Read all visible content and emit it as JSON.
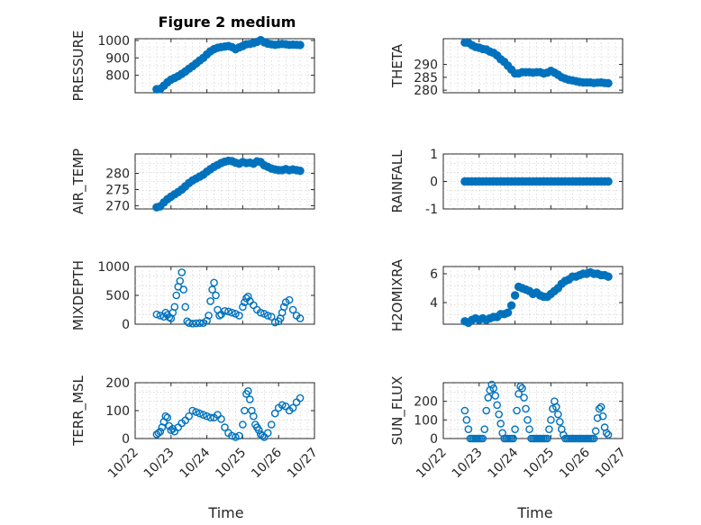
{
  "title": "Figure 2 medium",
  "colors": {
    "marker": "#0072BD",
    "axis": "#262626",
    "grid": "#c8c8c8"
  },
  "xaxis": {
    "label": "Time",
    "range": [
      "10/22",
      "10/27"
    ],
    "ticks": [
      "10/22",
      "10/23",
      "10/24",
      "10/25",
      "10/26",
      "10/27"
    ],
    "tick_values": [
      0,
      1,
      2,
      3,
      4,
      5
    ]
  },
  "chart_data": [
    {
      "id": "pressure",
      "type": "scatter",
      "col": 0,
      "row": 0,
      "ylabel": "PRESSURE",
      "ylim": [
        700,
        1010
      ],
      "yticks": [
        800,
        900,
        1000
      ],
      "ytick_labels": [
        "800",
        "900",
        "1000"
      ],
      "filled": true,
      "x": [
        0.6,
        0.7,
        0.8,
        0.9,
        1.0,
        1.1,
        1.2,
        1.3,
        1.4,
        1.5,
        1.6,
        1.7,
        1.8,
        1.9,
        2.0,
        2.1,
        2.2,
        2.3,
        2.4,
        2.5,
        2.6,
        2.7,
        2.8,
        2.9,
        3.0,
        3.1,
        3.2,
        3.3,
        3.4,
        3.5,
        3.6,
        3.7,
        3.8,
        3.9,
        4.0,
        4.1,
        4.2,
        4.3,
        4.4,
        4.5,
        4.6
      ],
      "y": [
        720,
        722,
        740,
        760,
        775,
        785,
        795,
        808,
        822,
        838,
        852,
        868,
        885,
        900,
        920,
        938,
        950,
        958,
        962,
        965,
        968,
        962,
        950,
        960,
        968,
        978,
        980,
        985,
        992,
        1002,
        990,
        982,
        978,
        975,
        978,
        980,
        978,
        975,
        976,
        975,
        974
      ]
    },
    {
      "id": "theta",
      "type": "scatter",
      "col": 1,
      "row": 0,
      "ylabel": "THETA",
      "ylim": [
        279,
        300
      ],
      "yticks": [
        280,
        285,
        290
      ],
      "ytick_labels": [
        "280",
        "285",
        "290"
      ],
      "filled": true,
      "x": [
        0.6,
        0.7,
        0.8,
        0.9,
        1.0,
        1.1,
        1.2,
        1.3,
        1.4,
        1.5,
        1.6,
        1.7,
        1.8,
        1.9,
        2.0,
        2.1,
        2.2,
        2.3,
        2.4,
        2.5,
        2.6,
        2.7,
        2.8,
        2.9,
        3.0,
        3.1,
        3.2,
        3.3,
        3.4,
        3.5,
        3.6,
        3.7,
        3.8,
        3.9,
        4.0,
        4.1,
        4.2,
        4.3,
        4.4,
        4.5,
        4.6
      ],
      "y": [
        298.5,
        298.4,
        297.5,
        296.8,
        296.5,
        296,
        295.8,
        295,
        294.5,
        293.5,
        292,
        291,
        289.5,
        288,
        286.5,
        286.5,
        287,
        287,
        287,
        286.8,
        287,
        287,
        286.5,
        286.8,
        287.5,
        286.8,
        286,
        285,
        284.5,
        284,
        283.8,
        283.5,
        283.2,
        283,
        283,
        283,
        282.8,
        282.9,
        283,
        282.8,
        282.7
      ]
    },
    {
      "id": "air_temp",
      "type": "scatter",
      "col": 0,
      "row": 1,
      "ylabel": "AIR_TEMP",
      "ylim": [
        269,
        286
      ],
      "yticks": [
        270,
        275,
        280
      ],
      "ytick_labels": [
        "270",
        "275",
        "280"
      ],
      "filled": true,
      "x": [
        0.6,
        0.7,
        0.8,
        0.9,
        1.0,
        1.1,
        1.2,
        1.3,
        1.4,
        1.5,
        1.6,
        1.7,
        1.8,
        1.9,
        2.0,
        2.1,
        2.2,
        2.3,
        2.4,
        2.5,
        2.6,
        2.7,
        2.8,
        2.9,
        3.0,
        3.1,
        3.2,
        3.3,
        3.4,
        3.5,
        3.6,
        3.7,
        3.8,
        3.9,
        4.0,
        4.1,
        4.2,
        4.3,
        4.4,
        4.5,
        4.6
      ],
      "y": [
        269.5,
        269.8,
        271,
        272,
        272.8,
        273.5,
        274.2,
        275,
        276,
        277,
        277.8,
        278.4,
        279,
        279.6,
        280.5,
        281.3,
        282,
        282.6,
        283.2,
        283.6,
        283.9,
        283.8,
        283.3,
        283,
        283.5,
        283.2,
        283.3,
        283,
        283.7,
        283.5,
        282.5,
        282,
        281.5,
        281.2,
        281,
        281,
        281.3,
        281,
        281.2,
        281,
        280.8
      ]
    },
    {
      "id": "rainfall",
      "type": "scatter",
      "col": 1,
      "row": 1,
      "ylabel": "RAINFALL",
      "ylim": [
        -1,
        1
      ],
      "yticks": [
        -1,
        0,
        1
      ],
      "ytick_labels": [
        "-1",
        "0",
        "1"
      ],
      "filled": true,
      "x": [
        0.6,
        0.7,
        0.8,
        0.9,
        1.0,
        1.1,
        1.2,
        1.3,
        1.4,
        1.5,
        1.6,
        1.7,
        1.8,
        1.9,
        2.0,
        2.1,
        2.2,
        2.3,
        2.4,
        2.5,
        2.6,
        2.7,
        2.8,
        2.9,
        3.0,
        3.1,
        3.2,
        3.3,
        3.4,
        3.5,
        3.6,
        3.7,
        3.8,
        3.9,
        4.0,
        4.1,
        4.2,
        4.3,
        4.4,
        4.5,
        4.6
      ],
      "y": [
        0,
        0,
        0,
        0,
        0,
        0,
        0,
        0,
        0,
        0,
        0,
        0,
        0,
        0,
        0,
        0,
        0,
        0,
        0,
        0,
        0,
        0,
        0,
        0,
        0,
        0,
        0,
        0,
        0,
        0,
        0,
        0,
        0,
        0,
        0,
        0,
        0,
        0,
        0,
        0,
        0
      ]
    },
    {
      "id": "mixdepth",
      "type": "scatter",
      "col": 0,
      "row": 2,
      "ylabel": "MIXDEPTH",
      "ylim": [
        0,
        1000
      ],
      "yticks": [
        0,
        500,
        1000
      ],
      "ytick_labels": [
        "0",
        "500",
        "1000"
      ],
      "filled": false,
      "x": [
        0.6,
        0.7,
        0.8,
        0.85,
        0.9,
        0.95,
        1.0,
        1.05,
        1.1,
        1.15,
        1.2,
        1.25,
        1.3,
        1.35,
        1.4,
        1.45,
        1.5,
        1.6,
        1.7,
        1.8,
        1.9,
        2.0,
        2.05,
        2.1,
        2.15,
        2.2,
        2.25,
        2.3,
        2.35,
        2.4,
        2.5,
        2.6,
        2.7,
        2.8,
        2.9,
        3.0,
        3.05,
        3.1,
        3.15,
        3.2,
        3.3,
        3.4,
        3.5,
        3.6,
        3.7,
        3.8,
        3.9,
        4.0,
        4.05,
        4.1,
        4.15,
        4.2,
        4.3,
        4.4,
        4.5,
        4.6
      ],
      "y": [
        170,
        150,
        130,
        200,
        160,
        120,
        100,
        200,
        300,
        500,
        650,
        750,
        900,
        600,
        300,
        50,
        20,
        10,
        15,
        20,
        20,
        60,
        150,
        400,
        600,
        720,
        500,
        250,
        150,
        170,
        230,
        220,
        200,
        180,
        150,
        300,
        380,
        450,
        480,
        400,
        330,
        250,
        200,
        180,
        150,
        130,
        30,
        50,
        100,
        200,
        300,
        380,
        420,
        250,
        150,
        100
      ]
    },
    {
      "id": "h2omixra",
      "type": "scatter",
      "col": 1,
      "row": 2,
      "ylabel": "H2OMIXRA",
      "ylim": [
        2.5,
        6.5
      ],
      "yticks": [
        4,
        6
      ],
      "ytick_labels": [
        "4",
        "6"
      ],
      "filled": true,
      "x": [
        0.6,
        0.7,
        0.8,
        0.9,
        1.0,
        1.1,
        1.2,
        1.3,
        1.4,
        1.5,
        1.6,
        1.7,
        1.8,
        1.9,
        2.0,
        2.1,
        2.2,
        2.3,
        2.4,
        2.5,
        2.6,
        2.7,
        2.8,
        2.9,
        3.0,
        3.1,
        3.2,
        3.3,
        3.4,
        3.5,
        3.6,
        3.7,
        3.8,
        3.9,
        4.0,
        4.1,
        4.2,
        4.3,
        4.4,
        4.5,
        4.6
      ],
      "y": [
        2.7,
        2.6,
        2.8,
        2.9,
        2.8,
        2.9,
        2.8,
        2.9,
        3.0,
        3.0,
        3.2,
        3.2,
        3.3,
        3.8,
        4.5,
        5.1,
        5.0,
        4.9,
        4.8,
        4.6,
        4.7,
        4.5,
        4.4,
        4.4,
        4.6,
        4.8,
        5.0,
        5.3,
        5.5,
        5.6,
        5.8,
        5.8,
        5.9,
        6.0,
        6.0,
        6.1,
        6.0,
        6.0,
        5.9,
        5.9,
        5.8
      ]
    },
    {
      "id": "terr_msl",
      "type": "scatter",
      "col": 0,
      "row": 3,
      "ylabel": "TERR_MSL",
      "ylim": [
        0,
        200
      ],
      "yticks": [
        0,
        100,
        200
      ],
      "ytick_labels": [
        "0",
        "100",
        "200"
      ],
      "filled": false,
      "x": [
        0.6,
        0.65,
        0.7,
        0.75,
        0.8,
        0.85,
        0.9,
        0.95,
        1.0,
        1.05,
        1.1,
        1.2,
        1.3,
        1.4,
        1.5,
        1.6,
        1.7,
        1.8,
        1.9,
        2.0,
        2.1,
        2.2,
        2.3,
        2.4,
        2.5,
        2.6,
        2.7,
        2.8,
        2.9,
        3.0,
        3.05,
        3.1,
        3.15,
        3.2,
        3.25,
        3.3,
        3.35,
        3.4,
        3.45,
        3.5,
        3.55,
        3.6,
        3.7,
        3.8,
        3.9,
        4.0,
        4.1,
        4.2,
        4.3,
        4.4,
        4.5,
        4.6
      ],
      "y": [
        15,
        20,
        25,
        40,
        60,
        80,
        75,
        45,
        30,
        35,
        25,
        40,
        55,
        65,
        80,
        100,
        95,
        90,
        85,
        80,
        75,
        75,
        85,
        70,
        40,
        20,
        10,
        5,
        10,
        50,
        100,
        160,
        170,
        140,
        100,
        80,
        50,
        40,
        30,
        15,
        10,
        5,
        20,
        50,
        90,
        110,
        120,
        115,
        100,
        110,
        130,
        145
      ]
    },
    {
      "id": "sun_flux",
      "type": "scatter",
      "col": 1,
      "row": 3,
      "ylabel": "SUN_FLUX",
      "ylim": [
        0,
        300
      ],
      "yticks": [
        0,
        100,
        200
      ],
      "ytick_labels": [
        "0",
        "100",
        "200"
      ],
      "filled": false,
      "x": [
        0.6,
        0.65,
        0.7,
        0.75,
        0.8,
        0.85,
        0.9,
        0.95,
        1.0,
        1.05,
        1.1,
        1.15,
        1.2,
        1.25,
        1.3,
        1.35,
        1.4,
        1.45,
        1.5,
        1.55,
        1.6,
        1.65,
        1.7,
        1.75,
        1.8,
        1.85,
        1.9,
        1.95,
        2.0,
        2.05,
        2.1,
        2.15,
        2.2,
        2.25,
        2.3,
        2.35,
        2.4,
        2.45,
        2.5,
        2.55,
        2.6,
        2.65,
        2.7,
        2.75,
        2.8,
        2.85,
        2.9,
        2.95,
        3.0,
        3.05,
        3.1,
        3.15,
        3.2,
        3.25,
        3.3,
        3.35,
        3.4,
        3.45,
        3.5,
        3.55,
        3.6,
        3.65,
        3.7,
        3.75,
        3.8,
        3.85,
        3.9,
        3.95,
        4.0,
        4.05,
        4.1,
        4.15,
        4.2,
        4.25,
        4.3,
        4.35,
        4.4,
        4.45,
        4.5,
        4.55,
        4.6
      ],
      "y": [
        150,
        100,
        50,
        0,
        0,
        0,
        0,
        0,
        0,
        0,
        0,
        50,
        150,
        220,
        260,
        290,
        270,
        230,
        180,
        130,
        80,
        30,
        0,
        0,
        0,
        0,
        0,
        0,
        50,
        150,
        240,
        280,
        270,
        220,
        160,
        100,
        50,
        0,
        0,
        0,
        0,
        0,
        0,
        0,
        0,
        0,
        0,
        50,
        100,
        160,
        200,
        170,
        130,
        90,
        50,
        20,
        0,
        0,
        0,
        0,
        0,
        0,
        0,
        0,
        0,
        0,
        0,
        0,
        0,
        0,
        0,
        0,
        0,
        40,
        110,
        160,
        170,
        120,
        60,
        30,
        20
      ]
    }
  ]
}
